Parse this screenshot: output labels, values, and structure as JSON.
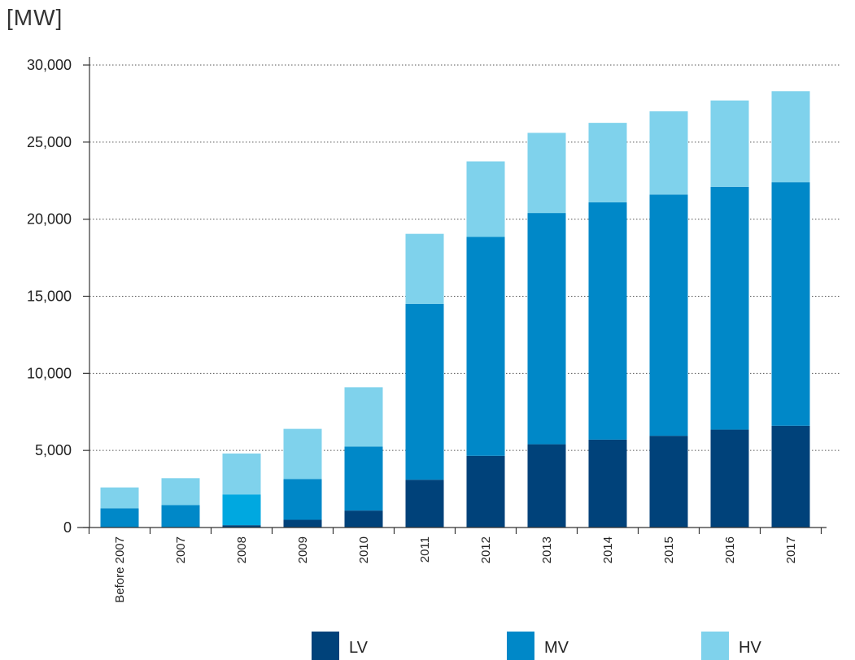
{
  "chart_data": {
    "type": "bar",
    "stacked": true,
    "unit_label": "[MW]",
    "categories": [
      "Before 2007",
      "2007",
      "2008",
      "2009",
      "2010",
      "2011",
      "2012",
      "2013",
      "2014",
      "2015",
      "2016",
      "2017"
    ],
    "series": [
      {
        "name": "LV",
        "color": "#00427a",
        "values": [
          0,
          0,
          150,
          500,
          1100,
          3100,
          4650,
          5400,
          5700,
          5950,
          6350,
          6600
        ]
      },
      {
        "name": "MV",
        "color": "#0088c8",
        "values": [
          1250,
          1450,
          2000,
          2650,
          4150,
          11400,
          14200,
          15000,
          15400,
          15650,
          15750,
          15800
        ]
      },
      {
        "name": "HV",
        "color": "#7fd2ec",
        "values": [
          1350,
          1750,
          2650,
          3250,
          3850,
          4550,
          4900,
          5200,
          5150,
          5400,
          5600,
          5900
        ]
      }
    ],
    "highlight": {
      "category": "2008",
      "series": "MV",
      "color": "#00a8e0"
    },
    "ylim": [
      0,
      30000
    ],
    "yticks": [
      0,
      5000,
      10000,
      15000,
      20000,
      25000,
      30000
    ],
    "ytick_labels": [
      "0",
      "5,000",
      "10,000",
      "15,000",
      "20,000",
      "25,000",
      "30,000"
    ],
    "grid": true,
    "legend_position": "bottom"
  }
}
